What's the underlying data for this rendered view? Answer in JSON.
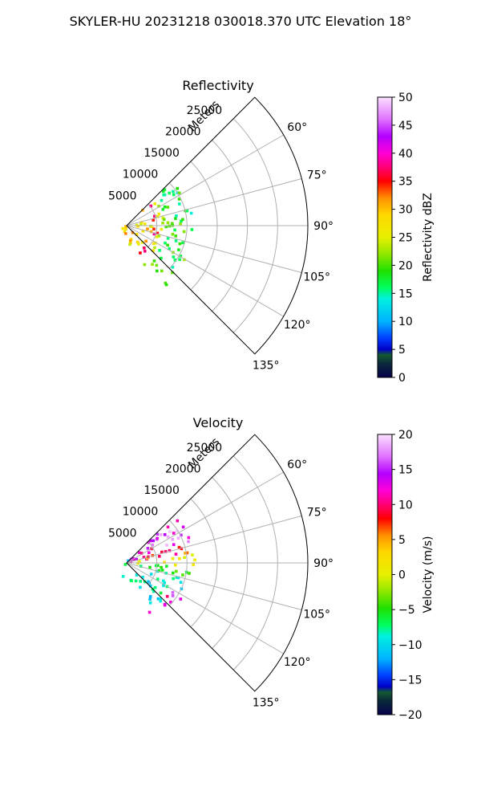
{
  "figure": {
    "suptitle": "SKYLER-HU  20231218  030018.370 UTC Elevation 18°"
  },
  "chart_data": [
    {
      "type": "heatmap",
      "projection": "polar-sector",
      "title": "Reflectivity",
      "radial_axis_label": "Meters",
      "radial_ticks": [
        5000,
        10000,
        15000,
        20000,
        25000
      ],
      "radial_tick_labels": [
        "5000",
        "10000",
        "15000",
        "20000",
        "25000"
      ],
      "radial_range": [
        0,
        30000
      ],
      "azimuth_range_deg": [
        45,
        135
      ],
      "azimuth_ticks_deg": [
        60,
        75,
        90,
        105,
        120,
        135
      ],
      "azimuth_tick_labels": [
        "60°",
        "75°",
        "90°",
        "105°",
        "120°",
        "135°"
      ],
      "grid": true,
      "data_extent_m": 12000,
      "colorbar": {
        "label": "Reflectivity dBZ",
        "range": [
          0,
          50
        ],
        "ticks": [
          0,
          5,
          10,
          15,
          20,
          25,
          30,
          35,
          40,
          45,
          50
        ],
        "tick_labels": [
          "0",
          "5",
          "10",
          "15",
          "20",
          "25",
          "30",
          "35",
          "40",
          "45",
          "50"
        ]
      }
    },
    {
      "type": "heatmap",
      "projection": "polar-sector",
      "title": "Velocity",
      "radial_axis_label": "Meters",
      "radial_ticks": [
        5000,
        10000,
        15000,
        20000,
        25000
      ],
      "radial_tick_labels": [
        "5000",
        "10000",
        "15000",
        "20000",
        "25000"
      ],
      "radial_range": [
        0,
        30000
      ],
      "azimuth_range_deg": [
        45,
        135
      ],
      "azimuth_ticks_deg": [
        60,
        75,
        90,
        105,
        120,
        135
      ],
      "azimuth_tick_labels": [
        "60°",
        "75°",
        "90°",
        "105°",
        "120°",
        "135°"
      ],
      "grid": true,
      "data_extent_m": 12000,
      "colorbar": {
        "label": "Velocity (m/s)",
        "range": [
          -20,
          20
        ],
        "ticks": [
          -20,
          -15,
          -10,
          -5,
          0,
          5,
          10,
          15,
          20
        ],
        "tick_labels": [
          "−20",
          "−15",
          "−10",
          "−5",
          "0",
          "5",
          "10",
          "15",
          "20"
        ]
      }
    }
  ]
}
